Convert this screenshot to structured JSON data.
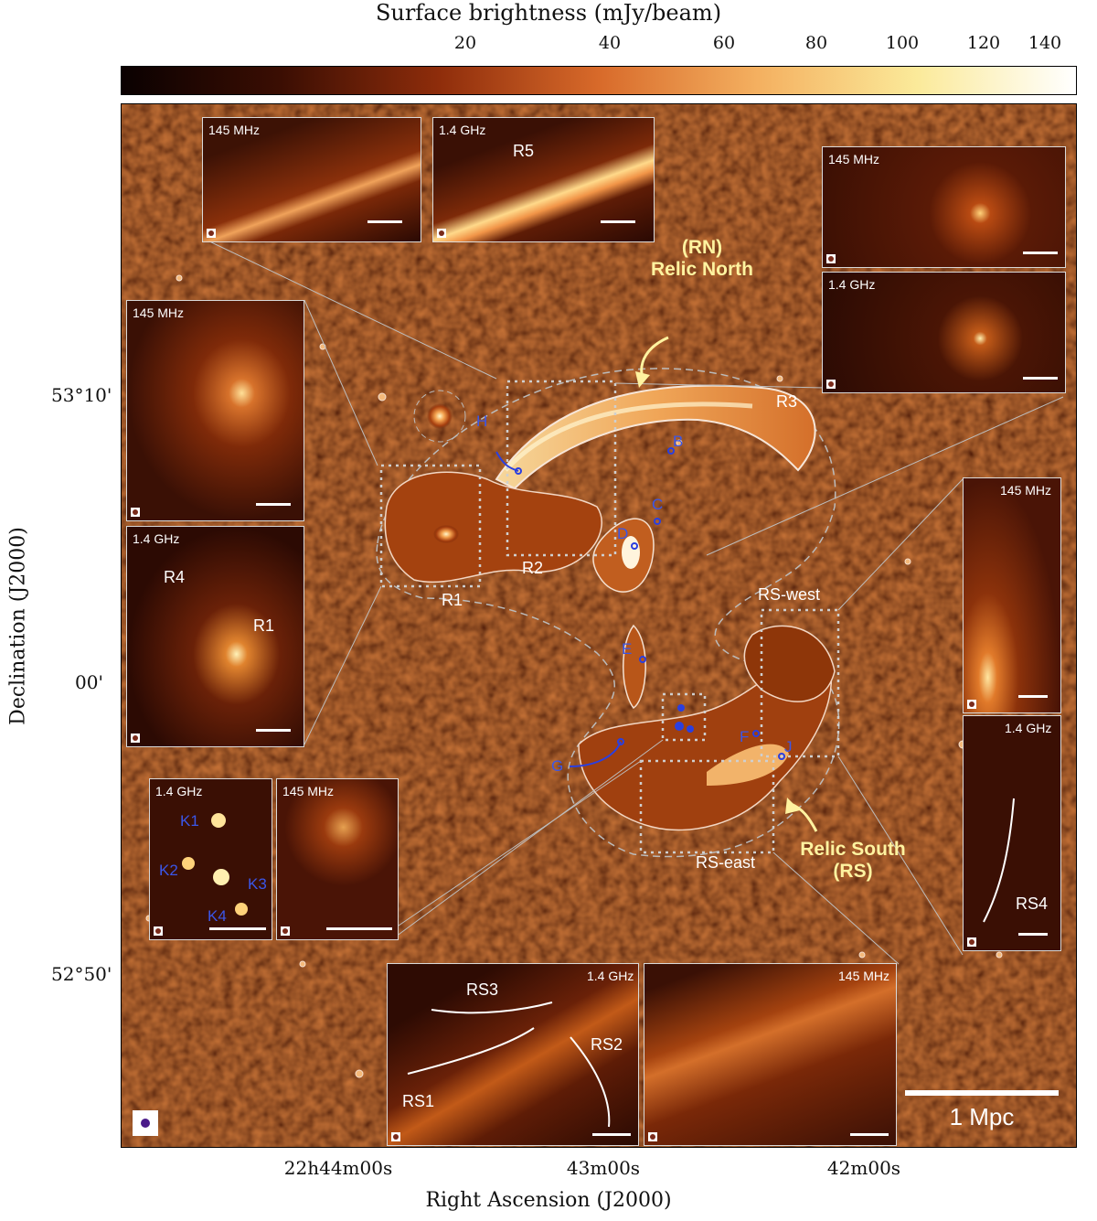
{
  "colorbar": {
    "title": "Surface brightness (mJy/beam)",
    "ticks": [
      "20",
      "40",
      "60",
      "80",
      "100",
      "120",
      "140"
    ],
    "gradient": [
      "#0a0101",
      "#3b0e03",
      "#8f2d0b",
      "#d86a2a",
      "#f4b060",
      "#fbea9a",
      "#ffffff"
    ]
  },
  "axes": {
    "ylabel": "Declination (J2000)",
    "xlabel": "Right Ascension (J2000)",
    "dec_ticks": [
      "53°10'",
      "00'",
      "52°50'"
    ],
    "ra_ticks": [
      "22h44m00s",
      "43m00s",
      "42m00s"
    ]
  },
  "labels": {
    "rn_short": "(RN)",
    "rn_long": "Relic North",
    "rs_long": "Relic South",
    "rs_short": "(RS)",
    "r1": "R1",
    "r2": "R2",
    "r3": "R3",
    "r4": "R4",
    "r5": "R5",
    "rs_west": "RS-west",
    "rs_east": "RS-east",
    "rs1": "RS1",
    "rs2": "RS2",
    "rs3": "RS3",
    "rs4": "RS4",
    "scale": "1 Mpc"
  },
  "sources": {
    "b": "B",
    "c": "C",
    "d": "D",
    "e": "E",
    "f": "F",
    "g": "G",
    "h": "H",
    "j": "J",
    "k1": "K1",
    "k2": "K2",
    "k3": "K3",
    "k4": "K4"
  },
  "insets": {
    "top_left_low": "145 MHz",
    "top_mid_high": "1.4 GHz",
    "left_upper_low": "145 MHz",
    "left_lower_high": "1.4 GHz",
    "right_upper_low": "145 MHz",
    "right_lower_high": "1.4 GHz",
    "right_side_low": "145 MHz",
    "right_side_high": "1.4 GHz",
    "k_high": "1.4 GHz",
    "k_low": "145 MHz",
    "bottom_high": "1.4 GHz",
    "bottom_low": "145 MHz"
  }
}
